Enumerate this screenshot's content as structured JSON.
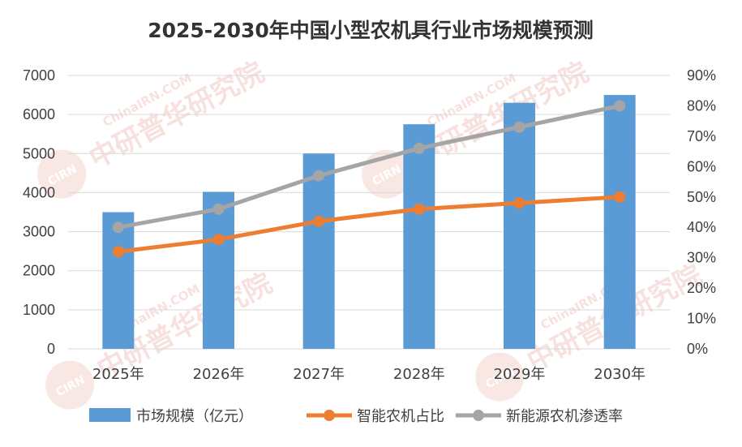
{
  "chart_data": {
    "type": "bar",
    "title": "2025-2030年中国小型农机具行业市场规模预测",
    "categories": [
      "2025年",
      "2026年",
      "2027年",
      "2028年",
      "2029年",
      "2030年"
    ],
    "series": [
      {
        "name": "市场规模（亿元）",
        "type": "bar",
        "axis": "left",
        "color": "#5B9BD5",
        "values": [
          3500,
          4020,
          5000,
          5750,
          6300,
          6500
        ]
      },
      {
        "name": "智能农机占比",
        "type": "line",
        "axis": "right",
        "color": "#ED7D31",
        "values": [
          0.32,
          0.36,
          0.42,
          0.46,
          0.48,
          0.5
        ]
      },
      {
        "name": "新能源农机渗透率",
        "type": "line",
        "axis": "right",
        "color": "#A5A5A5",
        "values": [
          0.4,
          0.46,
          0.57,
          0.66,
          0.73,
          0.8
        ]
      }
    ],
    "y_left": {
      "min": 0,
      "max": 7000,
      "ticks": [
        "0",
        "1000",
        "2000",
        "3000",
        "4000",
        "5000",
        "6000",
        "7000"
      ]
    },
    "y_right": {
      "min": 0,
      "max": 0.9,
      "ticks": [
        "0%",
        "10%",
        "20%",
        "30%",
        "40%",
        "50%",
        "60%",
        "70%",
        "80%",
        "90%"
      ]
    },
    "grid": true,
    "legend_position": "bottom"
  },
  "watermark": {
    "text": "中研普华研究院",
    "sub": "ChinaIRN.COM",
    "logo": "CIRN"
  }
}
